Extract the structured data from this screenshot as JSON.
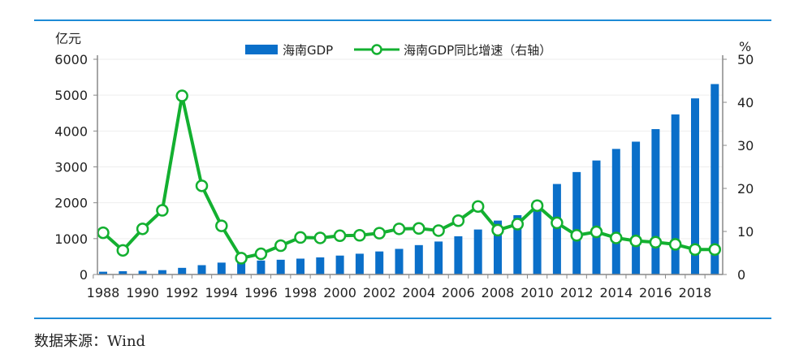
{
  "chart_data": {
    "type": "bar+line",
    "left_unit": "亿元",
    "right_unit": "%",
    "left_ylim": [
      0,
      6000
    ],
    "left_ticks": [
      "0",
      "1000",
      "2000",
      "3000",
      "4000",
      "5000",
      "6000"
    ],
    "right_ylim": [
      0,
      50
    ],
    "right_ticks": [
      "0",
      "10",
      "20",
      "30",
      "40",
      "50"
    ],
    "x": [
      1988,
      1989,
      1990,
      1991,
      1992,
      1993,
      1994,
      1995,
      1996,
      1997,
      1998,
      1999,
      2000,
      2001,
      2002,
      2003,
      2004,
      2005,
      2006,
      2007,
      2008,
      2009,
      2010,
      2011,
      2012,
      2013,
      2014,
      2015,
      2016,
      2017,
      2018,
      2019
    ],
    "x_tick_labels": [
      "1988",
      "1990",
      "1992",
      "1994",
      "1996",
      "1998",
      "2000",
      "2002",
      "2004",
      "2006",
      "2008",
      "2010",
      "2012",
      "2014",
      "2016",
      "2018"
    ],
    "grid": true,
    "legend_position": "top",
    "series": [
      {
        "name": "海南GDP",
        "type": "bar",
        "axis": "left",
        "color": "#0a6fc9",
        "values": [
          77,
          91,
          102,
          121,
          185,
          260,
          331,
          363,
          389,
          411,
          442,
          477,
          527,
          579,
          642,
          714,
          819,
          919,
          1065,
          1254,
          1503,
          1654,
          2065,
          2523,
          2856,
          3178,
          3501,
          3703,
          4053,
          4463,
          4910,
          5309
        ]
      },
      {
        "name": "海南GDP同比增速（右轴）",
        "type": "line",
        "axis": "right",
        "color": "#13b030",
        "values": [
          9.7,
          5.6,
          10.6,
          14.9,
          41.5,
          20.6,
          11.3,
          3.8,
          4.8,
          6.7,
          8.6,
          8.5,
          9.0,
          9.1,
          9.6,
          10.6,
          10.7,
          10.2,
          12.5,
          15.8,
          10.3,
          11.7,
          16.0,
          12.0,
          9.1,
          9.9,
          8.5,
          7.8,
          7.5,
          7.0,
          5.8,
          5.8
        ]
      }
    ]
  },
  "source": "数据来源：Wind",
  "rule_color": "#1e8bd6"
}
